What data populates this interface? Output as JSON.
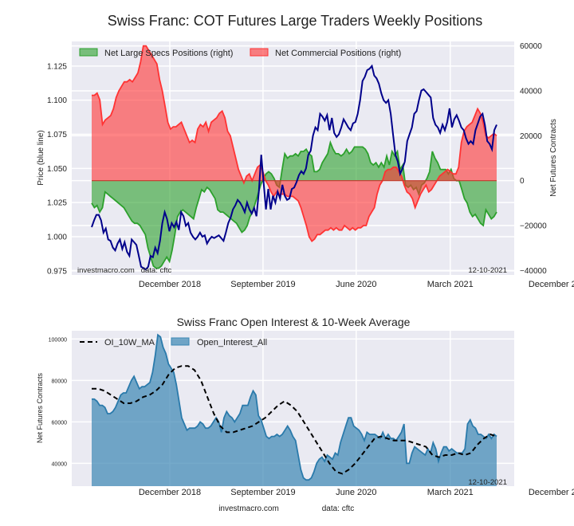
{
  "chart_data": [
    {
      "type": "line",
      "title": "Swiss Franc: COT Futures Large Traders Weekly Positions",
      "ylabel": "Price (blue line)",
      "y2label": "Net Futures Contracts",
      "ylim": [
        0.972,
        1.143
      ],
      "y2lim": [
        -42000,
        62000
      ],
      "yticks": [
        "0.975",
        "1.000",
        "1.025",
        "1.050",
        "1.075",
        "1.100",
        "1.125"
      ],
      "yticks_values": [
        0.975,
        1.0,
        1.025,
        1.05,
        1.075,
        1.1,
        1.125
      ],
      "y2ticks": [
        "−40000",
        "−20000",
        "0",
        "20000",
        "40000",
        "60000"
      ],
      "y2ticks_values": [
        -40000,
        -20000,
        0,
        20000,
        40000,
        60000
      ],
      "xticks": [
        "December 2018",
        "September 2019",
        "June 2020",
        "March 2021",
        "December 2021"
      ],
      "xticks_pos": [
        0.065,
        0.295,
        0.525,
        0.757,
        1.027
      ],
      "grid": true,
      "legend_position": "top-left",
      "legend": [
        "Net Large Specs Positions (right)",
        "Net Commercial Positions (right)"
      ],
      "watermark_left": "investmacro.com   data: cftc",
      "date_stamp": "12-10-2021",
      "series": [
        {
          "name": "Net Large Specs Positions (right)",
          "kind": "fill",
          "color": "#2ca02c",
          "values": [
            -10000,
            -12000,
            -11000,
            -14000,
            -12000,
            -5000,
            -6000,
            -7000,
            -8000,
            -9000,
            -10000,
            -11000,
            -12000,
            -14000,
            -16000,
            -18000,
            -19000,
            -19000,
            -20000,
            -22000,
            -24000,
            -30000,
            -34000,
            -38000,
            -39000,
            -39000,
            -38000,
            -36000,
            -34000,
            -36000,
            -31000,
            -24000,
            -16000,
            -14000,
            -13000,
            -14000,
            -15000,
            -16000,
            -17000,
            -12000,
            -8000,
            -4000,
            -5000,
            -3000,
            -4000,
            -6000,
            -8000,
            -13000,
            -14000,
            -14000,
            -15000,
            -16000,
            -17000,
            -18000,
            -19000,
            -21000,
            -23000,
            -22000,
            -20000,
            -16000,
            -14000,
            -10000,
            -6000,
            -2000,
            1000,
            3000,
            4000,
            3000,
            1000,
            -2000,
            -3000,
            5000,
            12000,
            10000,
            11000,
            11000,
            12000,
            11000,
            13000,
            13000,
            14000,
            12000,
            11000,
            4000,
            4000,
            5000,
            8000,
            10000,
            12000,
            17000,
            14000,
            12000,
            12000,
            11000,
            12000,
            14000,
            12000,
            13000,
            15000,
            15000,
            15000,
            15000,
            14000,
            12000,
            8000,
            7000,
            8000,
            6000,
            8000,
            6000,
            11000,
            7000,
            13000,
            11000,
            13000,
            5000,
            7000,
            -2000,
            -3000,
            -2000,
            -4000,
            -3000,
            -6000,
            -2000,
            -1000,
            1000,
            4000,
            13000,
            10000,
            8000,
            5000,
            5000,
            5000,
            3000,
            5000,
            1000,
            0,
            0,
            -4000,
            -8000,
            -10000,
            -14000,
            -16000,
            -15000,
            -17000,
            -19000,
            -20000,
            -13000,
            -15000,
            -17000,
            -16000,
            -14000
          ]
        },
        {
          "name": "Net Commercial Positions (right)",
          "kind": "fill",
          "color": "#ff3333",
          "values": [
            38000,
            38000,
            39000,
            36000,
            25000,
            27000,
            28000,
            29000,
            32000,
            37000,
            40000,
            42000,
            44000,
            44000,
            45000,
            44000,
            46000,
            48000,
            53000,
            60000,
            60000,
            58000,
            56000,
            54000,
            52000,
            45000,
            40000,
            33000,
            26000,
            23000,
            24000,
            24000,
            25000,
            26000,
            23000,
            20000,
            17000,
            18000,
            17000,
            23000,
            25000,
            24000,
            26000,
            22000,
            26000,
            27000,
            28000,
            30000,
            31000,
            28000,
            22000,
            20000,
            15000,
            10000,
            5000,
            2000,
            -1000,
            2000,
            3000,
            0,
            3000,
            6000,
            7000,
            4000,
            0,
            -2000,
            -5000,
            -7000,
            -5000,
            -6000,
            -6000,
            -6000,
            -7000,
            -7000,
            -7000,
            -8000,
            -9000,
            -12000,
            -16000,
            -20000,
            -25000,
            -27000,
            -26000,
            -24000,
            -24000,
            -23000,
            -22000,
            -22000,
            -21000,
            -22000,
            -21000,
            -22000,
            -22000,
            -20000,
            -21000,
            -22000,
            -21000,
            -22000,
            -21000,
            -21000,
            -20000,
            -20000,
            -16000,
            -14000,
            -12000,
            -6000,
            -2000,
            0,
            4000,
            5000,
            5000,
            6000,
            6000,
            4000,
            2000,
            -2000,
            -5000,
            -6000,
            -8000,
            -12000,
            -9000,
            -6000,
            -4000,
            -2000,
            -5000,
            -4000,
            -2000,
            0,
            2000,
            3000,
            4000,
            5000,
            4000,
            3000,
            3000,
            6000,
            17000,
            22000,
            24000,
            25000,
            26000,
            29000,
            32000,
            30000,
            26000,
            20000,
            19000,
            20000,
            21000,
            20000
          ]
        },
        {
          "name": "Price (blue line)",
          "kind": "line",
          "axis": "left",
          "color": "#00008b",
          "values": [
            1.007,
            1.012,
            1.016,
            1.016,
            1.012,
            1.003,
            1.006,
            0.998,
            0.997,
            0.992,
            0.99,
            0.995,
            0.998,
            0.991,
            0.996,
            0.989,
            0.986,
            0.998,
            0.996,
            0.994,
            0.986,
            0.978,
            0.977,
            0.976,
            0.978,
            0.986,
            0.985,
            0.992,
            0.988,
            0.997,
            1.01,
            1.018,
            1.013,
            1.004,
            1.01,
            1.007,
            1.011,
            1.005,
            1.018,
            1.015,
            1.008,
            1.01,
            1.003,
            1.0,
            0.998,
            1.0,
            1.003,
            1.0,
            1.001,
            0.995,
            0.998,
            1.0,
            0.999,
            1.0,
            1.001,
            0.999,
            0.997,
            1.003,
            1.01,
            1.014,
            1.02,
            1.023,
            1.027,
            1.025,
            1.022,
            1.018,
            1.025,
            1.02,
            1.017,
            1.021,
            1.015,
            1.033,
            1.06,
            1.04,
            1.02,
            1.035,
            1.02,
            1.03,
            1.025,
            1.033,
            1.028,
            1.038,
            1.03,
            1.027,
            1.028,
            1.035,
            1.036,
            1.04,
            1.045,
            1.048,
            1.046,
            1.05,
            1.06,
            1.063,
            1.074,
            1.08,
            1.078,
            1.09,
            1.088,
            1.085,
            1.089,
            1.078,
            1.087,
            1.076,
            1.073,
            1.075,
            1.08,
            1.086,
            1.083,
            1.08,
            1.078,
            1.083,
            1.084,
            1.09,
            1.1,
            1.114,
            1.117,
            1.122,
            1.123,
            1.125,
            1.118,
            1.116,
            1.112,
            1.105,
            1.1,
            1.098,
            1.1,
            1.09,
            1.075,
            1.06,
            1.055,
            1.046,
            1.05,
            1.055,
            1.07,
            1.075,
            1.08,
            1.09,
            1.092,
            1.1,
            1.107,
            1.108,
            1.106,
            1.104,
            1.102,
            1.087,
            1.082,
            1.08,
            1.076,
            1.082,
            1.078,
            1.084,
            1.094,
            1.08,
            1.086,
            1.089,
            1.085,
            1.08,
            1.078,
            1.072,
            1.068,
            1.07,
            1.068,
            1.078,
            1.083,
            1.088,
            1.09,
            1.082,
            1.07,
            1.068,
            1.064,
            1.078,
            1.082
          ]
        }
      ]
    },
    {
      "type": "area",
      "title": "Swiss Franc Open Interest & 10-Week Average",
      "ylabel": "Net Futures Contracts",
      "ylim": [
        29000,
        104000
      ],
      "yticks": [
        "40000",
        "60000",
        "80000",
        "100000"
      ],
      "yticks_values": [
        40000,
        60000,
        80000,
        100000
      ],
      "xticks": [
        "December 2018",
        "September 2019",
        "June 2020",
        "March 2021",
        "December 2021"
      ],
      "xticks_pos": [
        0.065,
        0.295,
        0.525,
        0.757,
        1.027
      ],
      "grid": true,
      "legend_position": "top-left",
      "legend": [
        "OI_10W_MA",
        "Open_Interest_All"
      ],
      "date_stamp": "12-10-2021",
      "series": [
        {
          "name": "Open_Interest_All",
          "kind": "area",
          "color": "#3a86b4",
          "values": [
            71000,
            71000,
            70000,
            68000,
            68000,
            67000,
            64000,
            64000,
            65000,
            67000,
            70000,
            73000,
            74000,
            74000,
            77000,
            80000,
            82000,
            79000,
            76000,
            77000,
            77000,
            78000,
            79000,
            84000,
            92000,
            102000,
            101000,
            96000,
            93000,
            88000,
            86000,
            84000,
            78000,
            70000,
            62000,
            59000,
            56000,
            57000,
            57000,
            57000,
            58000,
            60000,
            59000,
            57000,
            57000,
            58000,
            60000,
            62000,
            60000,
            55000,
            62000,
            65000,
            63000,
            62000,
            60000,
            62000,
            64000,
            68000,
            68000,
            68000,
            72000,
            75000,
            73000,
            63000,
            61000,
            57000,
            53000,
            52000,
            53000,
            53000,
            54000,
            53000,
            54000,
            56000,
            58000,
            56000,
            53000,
            51000,
            44000,
            37000,
            33000,
            32000,
            32000,
            33000,
            36000,
            40000,
            42000,
            43000,
            41000,
            44000,
            43000,
            42000,
            45000,
            44000,
            50000,
            54000,
            58000,
            62000,
            62000,
            58000,
            57000,
            56000,
            54000,
            51000,
            55000,
            54000,
            54000,
            54000,
            53000,
            52000,
            55000,
            52000,
            54000,
            52000,
            52000,
            51000,
            53000,
            55000,
            59000,
            40000,
            40000,
            45000,
            48000,
            47000,
            46000,
            45000,
            44000,
            47000,
            45000,
            50000,
            47000,
            41000,
            45000,
            48000,
            48000,
            46000,
            47000,
            46000,
            45000,
            45000,
            45000,
            47000,
            59000,
            61000,
            58000,
            57000,
            54000,
            54000,
            53000,
            52000,
            54000,
            52000,
            54000,
            53000
          ],
          "note": "trimmed representative weekly series"
        },
        {
          "name": "OI_10W_MA",
          "kind": "line",
          "style": "dashed",
          "color": "#000000",
          "values": [
            76000,
            76000,
            75000,
            73000,
            71000,
            69000,
            69000,
            70000,
            72000,
            73000,
            75000,
            78000,
            83000,
            86000,
            87000,
            87000,
            85000,
            80000,
            72000,
            64000,
            58000,
            55000,
            55000,
            56000,
            57000,
            58000,
            60000,
            62000,
            65000,
            68000,
            70000,
            68000,
            65000,
            60000,
            55000,
            50000,
            45000,
            40000,
            36000,
            35000,
            37000,
            40000,
            44000,
            48000,
            52000,
            53000,
            52000,
            51000,
            51000,
            51000,
            50000,
            49000,
            48000,
            44000,
            43000,
            44000,
            44000,
            45000,
            44000,
            45000,
            49000,
            52000,
            54000,
            53000
          ]
        }
      ],
      "footer_left": "investmacro.com",
      "footer_right": "data: cftc"
    }
  ]
}
